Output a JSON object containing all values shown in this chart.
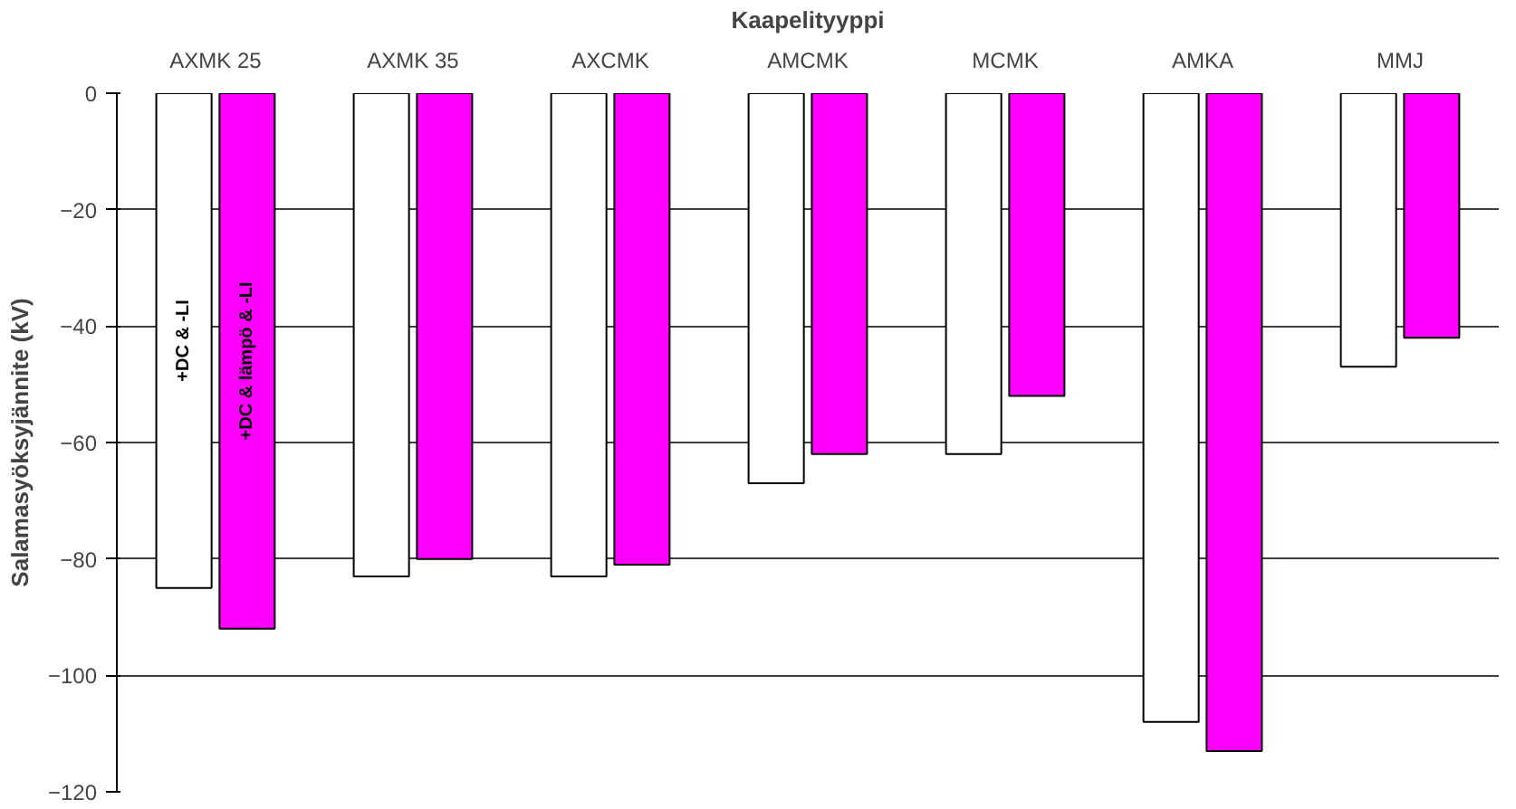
{
  "chart_data": {
    "type": "bar",
    "xlabel": "Kaapelityyppi",
    "ylabel": "Salamasyöksyjännite (kV)",
    "categories": [
      "AXMK 25",
      "AXMK 35",
      "AXCMK",
      "AMCMK",
      "MCMK",
      "AMKA",
      "MMJ"
    ],
    "series": [
      {
        "name": "+DC & -LI",
        "color": "#ffffff",
        "values": [
          -85,
          -83,
          -83,
          -67,
          -62,
          -108,
          -47
        ]
      },
      {
        "name": "+DC & lämpö & -LI",
        "color": "#ff00ff",
        "values": [
          -92,
          -80,
          -81,
          -62,
          -52,
          -113,
          -42
        ]
      }
    ],
    "ylim": [
      -120,
      0
    ],
    "yticks": [
      -120,
      -100,
      -80,
      -60,
      -40,
      -20,
      0
    ],
    "grid": "y"
  }
}
